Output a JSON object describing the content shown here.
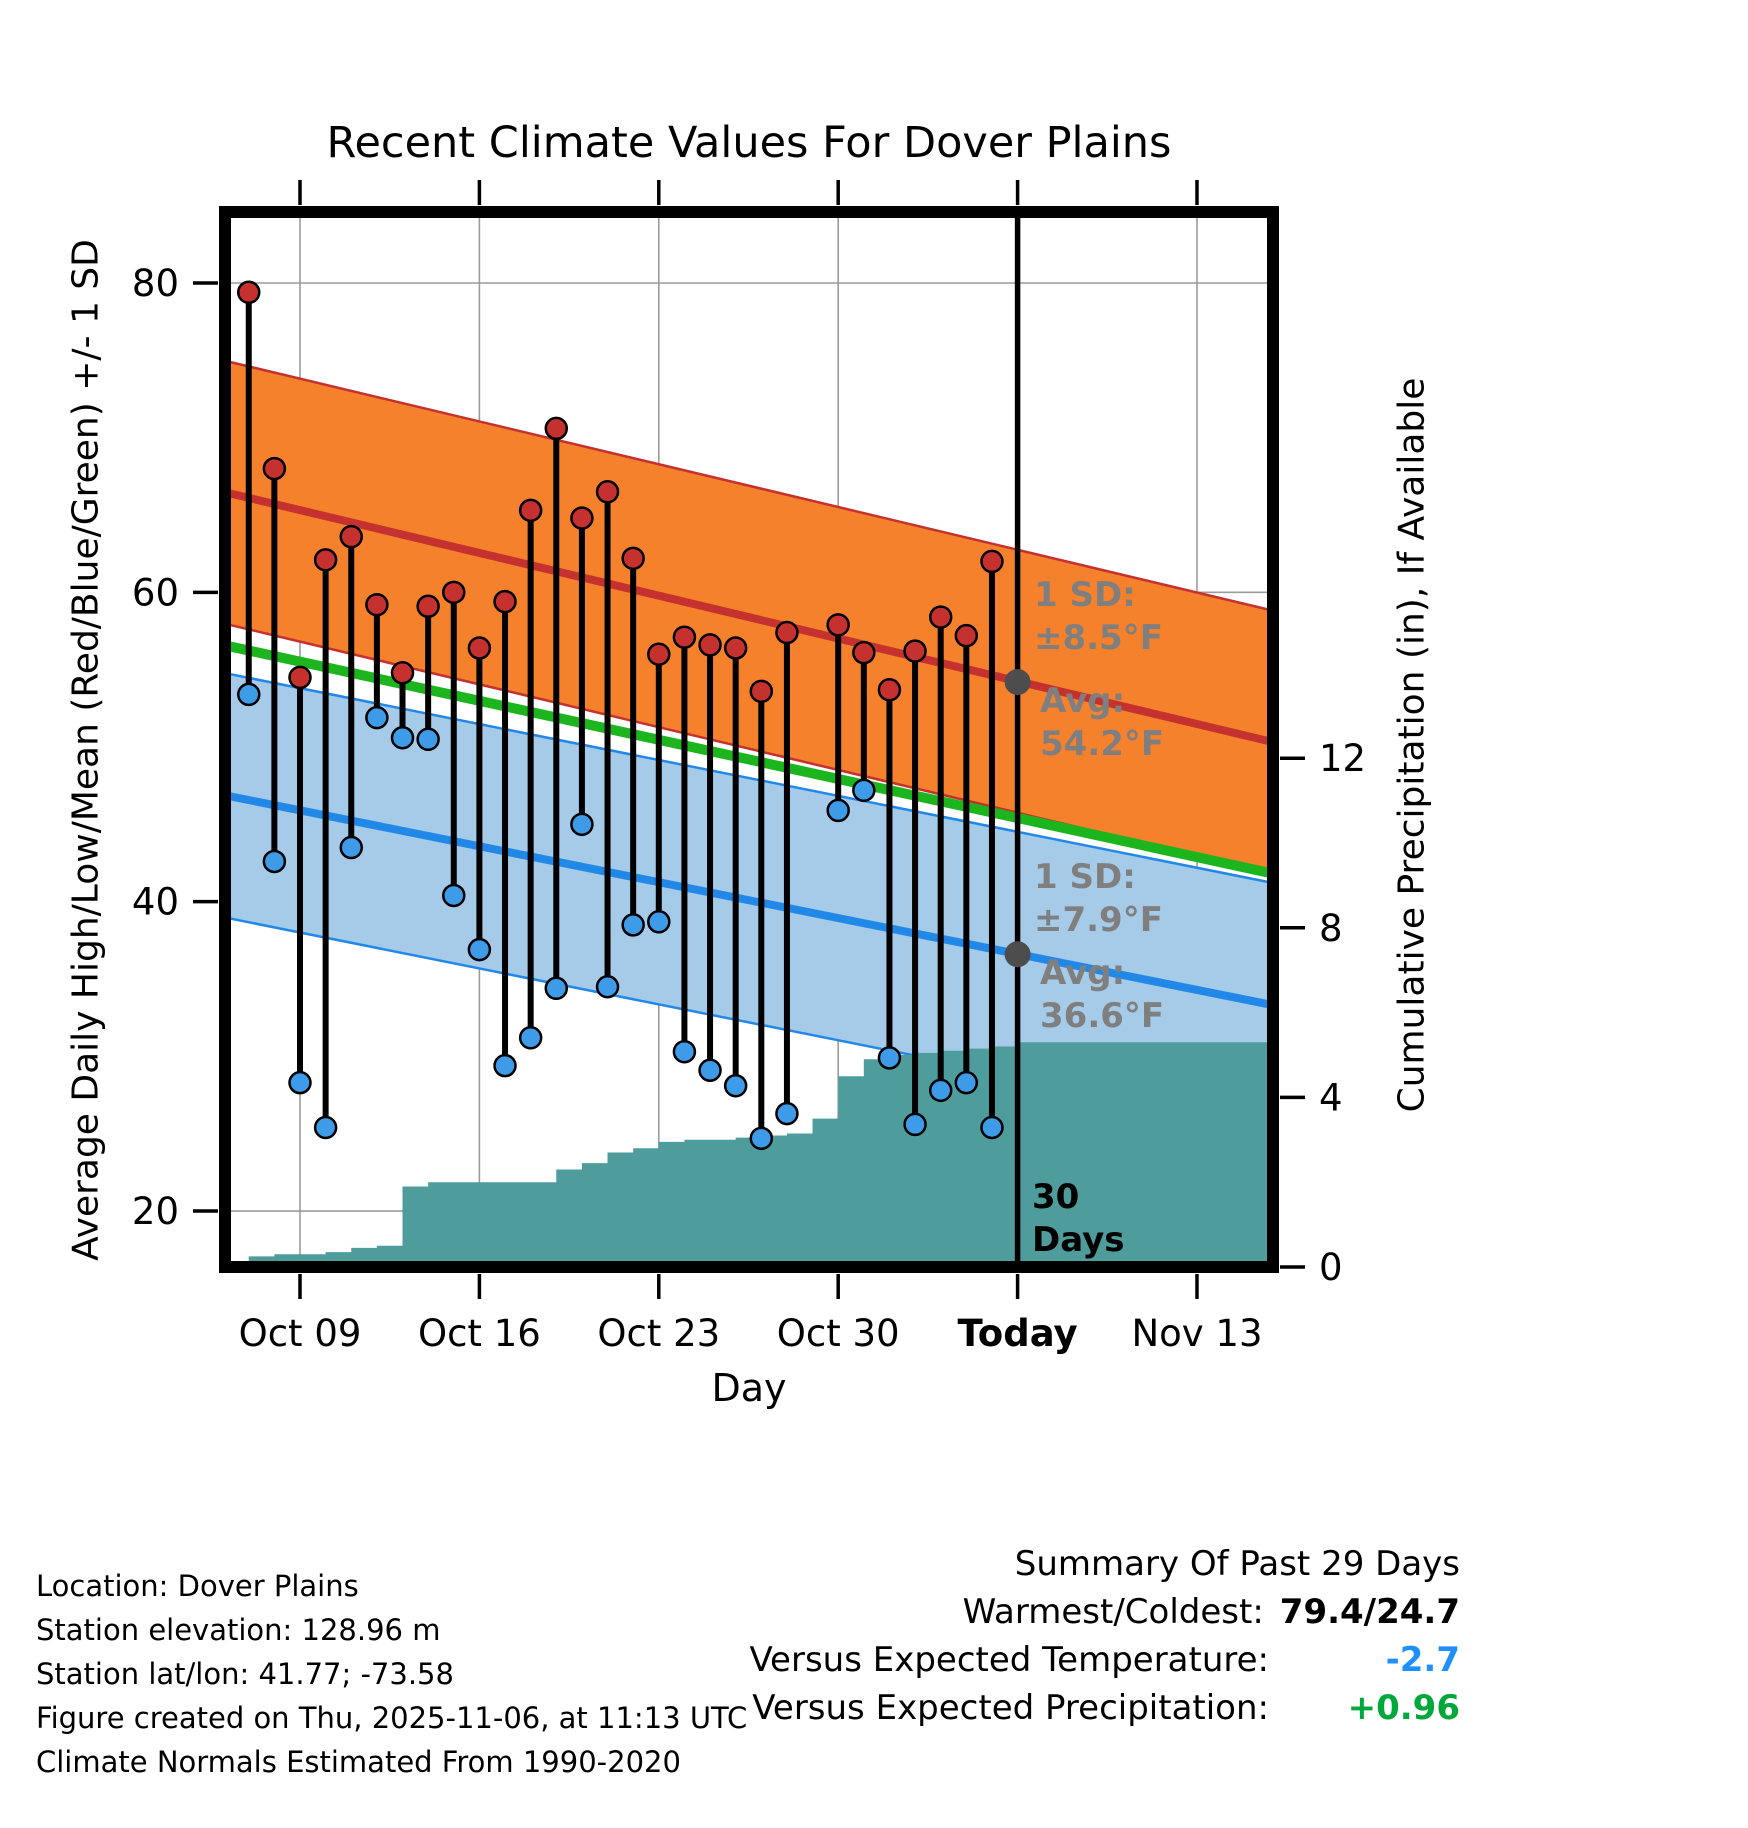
{
  "title": "Recent Climate Values For Dover Plains",
  "axes": {
    "x_label": "Day",
    "left_label": "Average Daily High/Low/Mean (Red/Blue/Green) +/- 1 SD",
    "right_label": "Cumulative Precipitation (in), If Available"
  },
  "annotations": {
    "high_sd_label": "1 SD:",
    "high_sd_value": "±8.5°F",
    "high_avg_label": "Avg:",
    "high_avg_value": "54.2°F",
    "low_sd_label": "1 SD:",
    "low_sd_value": "±7.9°F",
    "low_avg_label": "Avg:",
    "low_avg_value": "36.6°F",
    "today_line_label": [
      "30",
      "Days"
    ]
  },
  "footer": {
    "lines": [
      "Location: Dover Plains",
      "Station elevation: 128.96 m",
      "Station lat/lon: 41.77; -73.58",
      "Figure created on Thu, 2025-11-06, at 11:13 UTC",
      "Climate Normals Estimated From 1990-2020"
    ]
  },
  "summary": {
    "heading": "Summary Of Past 29 Days",
    "rows": [
      {
        "label": "Warmest/Coldest:",
        "value": "79.4/24.7"
      },
      {
        "label": "Versus Expected Temperature:",
        "value": "-2.7"
      },
      {
        "label": "Versus Expected Precipitation:",
        "value": "+0.96"
      }
    ]
  },
  "colors": {
    "high_band": "#F5812D",
    "high_line": "#C5312E",
    "low_band": "#A6CBE8",
    "low_line": "#2288E8",
    "mean_line": "#1DB51D",
    "precip_fill": "#4E9C9B",
    "dot_high": "#C5312E",
    "dot_low": "#3D9BE8",
    "avg_dot": "#4D4D4D",
    "annotation_gray": "#7F7F7F",
    "grid": "#9B9B9B",
    "today_line": "#000000",
    "extremes_value": "#000000",
    "versus_temp_value": "#1E90FF",
    "versus_precip_value": "#00A83C"
  },
  "chart_data": {
    "type": "line",
    "title": "Recent Climate Values For Dover Plains",
    "xlabel": "Day",
    "ylabel_left": "Average Daily High/Low/Mean (Red/Blue/Green) +/- 1 SD",
    "ylabel_right": "Cumulative Precipitation (in), If Available",
    "ylim_left": [
      16.4,
      84.6
    ],
    "ylim_right": [
      0,
      24.9
    ],
    "grid": true,
    "left_ticks": [
      80,
      60,
      40,
      20
    ],
    "right_ticks": [
      12,
      8,
      4,
      0
    ],
    "x_ticks": [
      {
        "label": "Oct 09",
        "day": 3
      },
      {
        "label": "Oct 16",
        "day": 10
      },
      {
        "label": "Oct 23",
        "day": 17
      },
      {
        "label": "Oct 30",
        "day": 24
      },
      {
        "label": "Today",
        "day": 31,
        "bold": true,
        "today": true
      },
      {
        "label": "Nov 13",
        "day": 38
      }
    ],
    "daily": {
      "dates": [
        "Oct 07",
        "Oct 08",
        "Oct 09",
        "Oct 10",
        "Oct 11",
        "Oct 12",
        "Oct 13",
        "Oct 14",
        "Oct 15",
        "Oct 16",
        "Oct 17",
        "Oct 18",
        "Oct 19",
        "Oct 20",
        "Oct 21",
        "Oct 22",
        "Oct 23",
        "Oct 24",
        "Oct 25",
        "Oct 26",
        "Oct 27",
        "Oct 28",
        "Oct 30",
        "Oct 31",
        "Nov 01",
        "Nov 02",
        "Nov 03",
        "Nov 04",
        "Nov 05"
      ],
      "day_offsets": [
        1,
        2,
        3,
        4,
        5,
        6,
        7,
        8,
        9,
        10,
        11,
        12,
        13,
        14,
        15,
        16,
        17,
        18,
        19,
        20,
        21,
        22,
        24,
        25,
        26,
        27,
        28,
        29,
        30
      ],
      "highs": [
        79.4,
        68.0,
        54.5,
        62.1,
        63.6,
        59.2,
        54.8,
        59.1,
        60.0,
        56.4,
        59.4,
        65.3,
        70.6,
        64.8,
        66.5,
        62.2,
        56.0,
        57.1,
        56.6,
        56.4,
        53.6,
        57.4,
        57.9,
        56.1,
        53.7,
        56.2,
        58.4,
        57.2,
        62.0
      ],
      "lows": [
        53.4,
        42.6,
        28.3,
        25.4,
        43.5,
        51.9,
        50.6,
        50.5,
        40.4,
        36.9,
        29.4,
        31.2,
        34.4,
        45.0,
        34.5,
        38.5,
        38.7,
        30.3,
        29.1,
        28.1,
        24.7,
        26.3,
        45.9,
        47.2,
        29.9,
        25.6,
        27.8,
        28.3,
        25.4
      ]
    },
    "normals": {
      "span_days": 41,
      "day0_date": "Oct 06",
      "avg_high_start": 66.5,
      "avg_high_end": 50.3,
      "high_sd": 8.5,
      "avg_low_start": 46.9,
      "avg_low_end": 33.3,
      "low_sd": 7.9,
      "mean_start": 56.6,
      "mean_end": 41.8,
      "today_day": 31,
      "avg_high_today": 54.2,
      "avg_low_today": 36.6
    },
    "precip_day0_date": "Oct 06",
    "precip_cumulative": [
      0.05,
      0.25,
      0.3,
      0.3,
      0.35,
      0.45,
      0.5,
      1.9,
      2.0,
      2.0,
      2.0,
      2.0,
      2.0,
      2.3,
      2.45,
      2.7,
      2.8,
      2.95,
      3.0,
      3.0,
      3.05,
      3.1,
      3.15,
      3.5,
      4.5,
      4.9,
      5.0,
      5.05,
      5.1,
      5.15,
      5.2,
      5.3,
      5.3,
      5.3,
      5.3,
      5.3,
      5.3,
      5.3,
      5.3,
      5.3,
      5.3,
      5.3
    ]
  }
}
